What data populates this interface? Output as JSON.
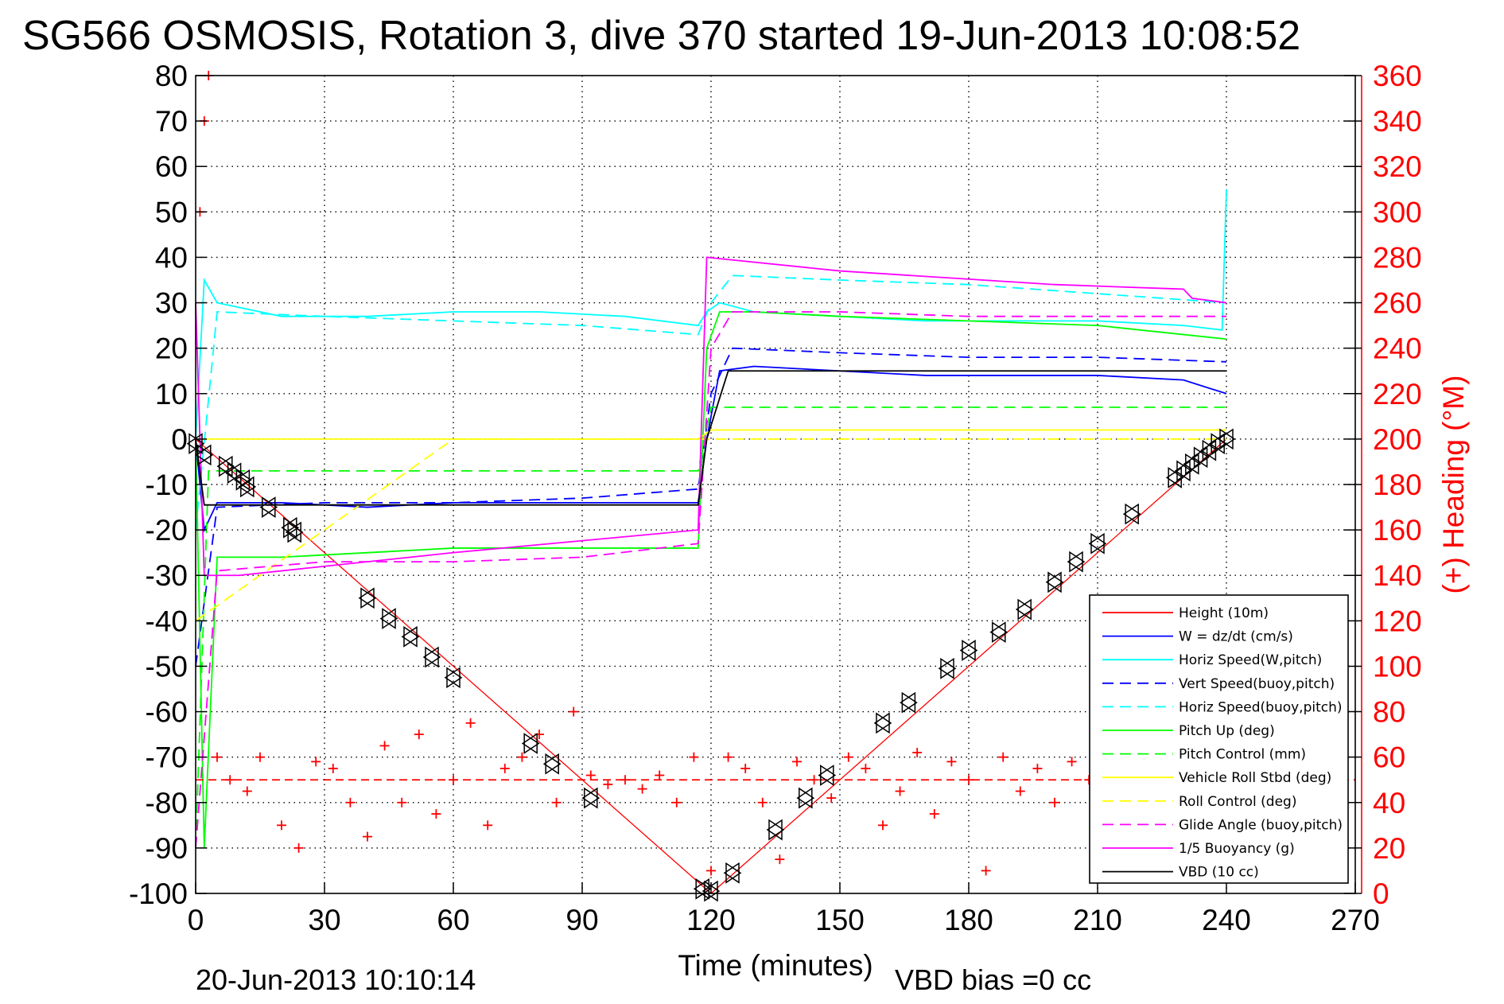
{
  "chart_data": {
    "type": "line",
    "title": "SG566 OSMOSIS, Rotation 3, dive 370 started 19-Jun-2013 10:08:52",
    "xlabel": "Time (minutes)",
    "ylabel": "",
    "y2label": "(+) Heading (°M)",
    "xlim": [
      0,
      270
    ],
    "ylim": [
      -100,
      80
    ],
    "y2lim": [
      0,
      360
    ],
    "xticks": [
      0,
      30,
      60,
      90,
      120,
      150,
      180,
      210,
      240,
      270
    ],
    "yticks": [
      80,
      70,
      60,
      50,
      40,
      30,
      20,
      10,
      0,
      -10,
      -20,
      -30,
      -40,
      -50,
      -60,
      -70,
      -80,
      -90,
      -100
    ],
    "y2ticks": [
      360,
      340,
      320,
      300,
      280,
      260,
      240,
      220,
      200,
      180,
      160,
      140,
      120,
      100,
      80,
      60,
      40,
      20,
      0
    ],
    "grid": true,
    "legend_position": "bottom-right",
    "footer_left": "20-Jun-2013 10:10:14",
    "footer_right": "VBD bias =0 cc",
    "series": [
      {
        "name": "Height (10m)",
        "color": "#ff0000",
        "style": "solid",
        "x": [
          0,
          120,
          240
        ],
        "y": [
          0,
          -100,
          0
        ]
      },
      {
        "name": "W = dz/dt (cm/s)",
        "color": "#0000ff",
        "style": "solid",
        "x": [
          0,
          2,
          5,
          10,
          20,
          40,
          60,
          80,
          100,
          117,
          119,
          122,
          130,
          150,
          170,
          190,
          210,
          230,
          240
        ],
        "y": [
          0,
          -20,
          -14,
          -14,
          -14,
          -15,
          -14,
          -14,
          -14,
          -14,
          0,
          15,
          16,
          15,
          14,
          14,
          14,
          13,
          10
        ]
      },
      {
        "name": "Horiz Speed(W,pitch)",
        "color": "#00ffff",
        "style": "solid",
        "x": [
          0,
          2,
          5,
          20,
          40,
          60,
          80,
          100,
          117,
          119,
          122,
          130,
          150,
          170,
          190,
          210,
          230,
          239,
          240
        ],
        "y": [
          0,
          35,
          30,
          27,
          27,
          28,
          28,
          27,
          25,
          28,
          30,
          28,
          27,
          26,
          26,
          26,
          25,
          24,
          55
        ]
      },
      {
        "name": "Vert Speed(buoy,pitch)",
        "color": "#0000ff",
        "style": "dashed",
        "x": [
          0,
          5,
          30,
          60,
          90,
          117,
          120,
          125,
          150,
          180,
          210,
          240
        ],
        "y": [
          -50,
          -15,
          -14,
          -14,
          -13,
          -11,
          10,
          20,
          19,
          18,
          18,
          17
        ]
      },
      {
        "name": "Horiz Speed(buoy,pitch)",
        "color": "#00ffff",
        "style": "dashed",
        "x": [
          0,
          5,
          30,
          60,
          90,
          117,
          120,
          125,
          150,
          180,
          210,
          240
        ],
        "y": [
          -20,
          28,
          27,
          26,
          25,
          23,
          30,
          36,
          35,
          34,
          32,
          30
        ]
      },
      {
        "name": "Pitch Up (deg)",
        "color": "#00ff00",
        "style": "solid",
        "x": [
          0,
          2,
          5,
          20,
          40,
          60,
          90,
          117,
          119,
          122,
          130,
          150,
          180,
          210,
          240
        ],
        "y": [
          0,
          -90,
          -26,
          -26,
          -25,
          -24,
          -24,
          -24,
          20,
          28,
          28,
          27,
          26,
          25,
          22
        ]
      },
      {
        "name": "Pitch Control (mm)",
        "color": "#00ff00",
        "style": "dashed",
        "x": [
          0,
          3,
          60,
          117,
          120,
          240
        ],
        "y": [
          -90,
          -7,
          -7,
          -7,
          7,
          7
        ]
      },
      {
        "name": "Vehicle Roll Stbd (deg)",
        "color": "#ffff00",
        "style": "solid",
        "x": [
          0,
          60,
          117,
          120,
          240
        ],
        "y": [
          0,
          0,
          0,
          2,
          2
        ]
      },
      {
        "name": "Roll Control (deg)",
        "color": "#ffff00",
        "style": "dashed",
        "x": [
          0,
          60,
          117,
          120,
          240
        ],
        "y": [
          -40,
          0,
          0,
          0,
          0
        ]
      },
      {
        "name": "Glide Angle (buoy,pitch)",
        "color": "#ff00ff",
        "style": "dashed",
        "x": [
          0,
          5,
          30,
          60,
          90,
          117,
          120,
          125,
          150,
          180,
          210,
          240
        ],
        "y": [
          -90,
          -29,
          -27,
          -27,
          -26,
          -23,
          20,
          28,
          28,
          27,
          27,
          27
        ]
      },
      {
        "name": "1/5 Buoyancy (g)",
        "color": "#ff00ff",
        "style": "solid",
        "x": [
          0,
          2,
          10,
          60,
          117,
          119,
          150,
          200,
          230,
          232,
          240
        ],
        "y": [
          30,
          -30,
          -30,
          -25,
          -20,
          40,
          37,
          34,
          33,
          31,
          30
        ]
      },
      {
        "name": "VBD (10 cc)",
        "color": "#000000",
        "style": "solid",
        "x": [
          0,
          2,
          117,
          119,
          124,
          240
        ],
        "y": [
          0,
          -14.5,
          -14.5,
          0,
          15,
          15
        ]
      },
      {
        "name": "Heading",
        "color": "#ff0000",
        "style": "markers",
        "axis": "right",
        "mean": 50,
        "x": [
          1,
          2,
          3,
          5,
          8,
          12,
          15,
          20,
          24,
          28,
          32,
          36,
          40,
          44,
          48,
          52,
          56,
          60,
          64,
          68,
          72,
          76,
          80,
          84,
          88,
          92,
          96,
          100,
          104,
          108,
          112,
          116,
          120,
          124,
          128,
          132,
          136,
          140,
          144,
          148,
          152,
          156,
          160,
          164,
          168,
          172,
          176,
          180,
          184,
          188,
          192,
          196,
          200,
          204,
          208,
          212,
          216,
          220,
          224,
          228,
          232,
          236,
          240
        ],
        "y": [
          300,
          340,
          360,
          60,
          50,
          45,
          60,
          30,
          20,
          58,
          55,
          40,
          25,
          65,
          40,
          70,
          35,
          50,
          75,
          30,
          55,
          60,
          70,
          40,
          80,
          52,
          48,
          50,
          46,
          52,
          40,
          60,
          10,
          60,
          55,
          40,
          15,
          58,
          50,
          42,
          60,
          55,
          30,
          45,
          62,
          35,
          58,
          50,
          10,
          60,
          45,
          55,
          40,
          58,
          50,
          60,
          30,
          55,
          40,
          60,
          45,
          55,
          50
        ]
      },
      {
        "name": "Depth markers",
        "color": "#000000",
        "style": "triangles",
        "x": [
          0,
          2,
          7,
          9,
          11,
          12,
          17,
          22,
          23,
          40,
          45,
          50,
          55,
          60,
          78,
          83,
          92,
          118,
          120,
          125,
          135,
          142,
          147,
          160,
          166,
          175,
          180,
          187,
          193,
          200,
          205,
          210,
          218,
          228,
          230,
          232,
          234,
          236,
          238,
          240
        ],
        "y": [
          -1,
          -3.5,
          -6,
          -7.5,
          -9,
          -10.5,
          -15,
          -19.5,
          -20.5,
          -35,
          -39.5,
          -43.5,
          -48,
          -52.5,
          -67,
          -71.5,
          -79,
          -99,
          -99.5,
          -95.5,
          -86,
          -79,
          -74,
          -62.5,
          -58,
          -50.5,
          -46.5,
          -42.5,
          -37.5,
          -31.5,
          -27,
          -23,
          -16.5,
          -8.5,
          -7,
          -5.5,
          -4,
          -2.5,
          -1,
          0
        ]
      }
    ]
  }
}
